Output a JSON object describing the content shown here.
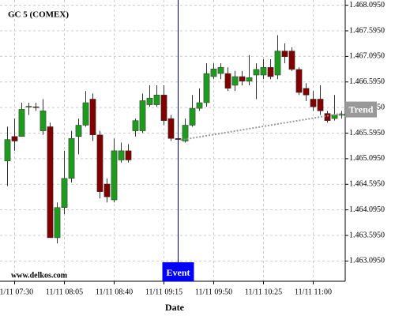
{
  "chart_data": {
    "type": "candlestick",
    "title": "GC 5 (COMEX)",
    "watermark": "www.delkos.com",
    "x_label": "Date",
    "categories": [
      null,
      "11/11 07:30",
      null,
      null,
      null,
      null,
      null,
      null,
      "11/11 08:05",
      null,
      null,
      null,
      null,
      null,
      null,
      "11/11 08:40",
      null,
      null,
      null,
      null,
      null,
      null,
      "11/11 09:15",
      null,
      null,
      null,
      null,
      null,
      null,
      "11/11 09:50",
      null,
      null,
      null,
      null,
      null,
      null,
      "11/11 10:25",
      null,
      null,
      null,
      null,
      null,
      null,
      "11/11 11:00",
      null,
      null,
      null,
      null
    ],
    "open": [
      1465.05,
      1465.53,
      1465.53,
      1466.11,
      1466.11,
      1465.64,
      1465.72,
      1463.55,
      1464.14,
      1464.71,
      1465.53,
      1465.75,
      1466.26,
      1465.56,
      1464.6,
      1464.29,
      1465.07,
      1465.25,
      1465.64,
      1465.64,
      1466.15,
      1466.15,
      1466.34,
      1465.88,
      1465.49,
      1465.44,
      1465.75,
      1466.08,
      1466.19,
      1466.7,
      1466.76,
      1466.76,
      1466.53,
      1466.7,
      1466.61,
      1466.73,
      1466.73,
      1466.88,
      1466.73,
      1467.2,
      1467.2,
      1466.84,
      1466.47,
      1466.26,
      1466.26,
      1465.98,
      1465.88,
      1465.95
    ],
    "high": [
      1465.72,
      1465.88,
      1466.19,
      1466.19,
      1466.19,
      1466.26,
      1465.8,
      1464.24,
      1465.25,
      1465.64,
      1465.88,
      1466.42,
      1466.37,
      1465.64,
      1464.71,
      1465.49,
      1465.41,
      1465.38,
      1465.88,
      1466.37,
      1466.53,
      1466.53,
      1466.53,
      1465.95,
      1465.53,
      1465.88,
      1466.34,
      1466.47,
      1466.96,
      1466.96,
      1466.96,
      1466.88,
      1466.81,
      1466.81,
      1467.12,
      1466.96,
      1467.04,
      1467.04,
      1467.51,
      1467.35,
      1467.27,
      1466.88,
      1466.57,
      1466.42,
      1466.53,
      1466.03,
      1466.34,
      1466.03
    ],
    "low": [
      1464.56,
      1465.25,
      1465.53,
      1465.95,
      1466.03,
      1465.56,
      1463.55,
      1463.44,
      1464.01,
      1464.63,
      1465.18,
      1465.72,
      1465.44,
      1464.32,
      1464.24,
      1464.24,
      1465.02,
      1465.02,
      1465.53,
      1465.6,
      1466.11,
      1466.11,
      1465.75,
      1465.44,
      1465.41,
      1465.41,
      1465.72,
      1466.03,
      1466.11,
      1466.65,
      1466.65,
      1466.42,
      1466.42,
      1466.53,
      1466.53,
      1466.26,
      1466.65,
      1466.65,
      1466.65,
      1466.96,
      1466.81,
      1466.34,
      1466.22,
      1466.03,
      1465.95,
      1465.8,
      1465.84,
      1465.88
    ],
    "close": [
      1465.47,
      1465.44,
      1466.06,
      1466.12,
      1466.1,
      1466.03,
      1463.55,
      1464.14,
      1464.71,
      1465.49,
      1465.75,
      1466.19,
      1465.56,
      1464.45,
      1464.35,
      1465.25,
      1465.25,
      1465.07,
      1465.84,
      1466.23,
      1466.28,
      1466.34,
      1465.84,
      1465.49,
      1465.47,
      1465.75,
      1466.08,
      1466.19,
      1466.76,
      1466.85,
      1466.88,
      1466.47,
      1466.7,
      1466.61,
      1466.68,
      1466.84,
      1466.88,
      1466.7,
      1467.2,
      1467.09,
      1466.84,
      1466.39,
      1466.34,
      1466.11,
      1466.03,
      1465.84,
      1465.95,
      1465.96
    ],
    "up_color": "#1e9b1e",
    "down_color": "#800000",
    "event_label": "Event",
    "trend": {
      "label": "Trend",
      "values": [
        1465.46,
        1465.98
      ],
      "color": "#999999"
    },
    "ylim": [
      1462.7,
      1468.12
    ],
    "yticks": [
      {
        "value": 1463.095,
        "label": "1.463.0950"
      },
      {
        "value": 1463.595,
        "label": "1.463.5950"
      },
      {
        "value": 1464.095,
        "label": "1.464.0950"
      },
      {
        "value": 1464.595,
        "label": "1.464.5950"
      },
      {
        "value": 1465.095,
        "label": "1.465.0950"
      },
      {
        "value": 1465.595,
        "label": "1.465.5950"
      },
      {
        "value": 1466.095,
        "label": "1.466.0950"
      },
      {
        "value": 1466.595,
        "label": "1.466.5950"
      },
      {
        "value": 1467.095,
        "label": "1.467.0950"
      },
      {
        "value": 1467.595,
        "label": "1.467.5950"
      },
      {
        "value": 1468.095,
        "label": "1.468.0950"
      }
    ],
    "grid": true
  }
}
